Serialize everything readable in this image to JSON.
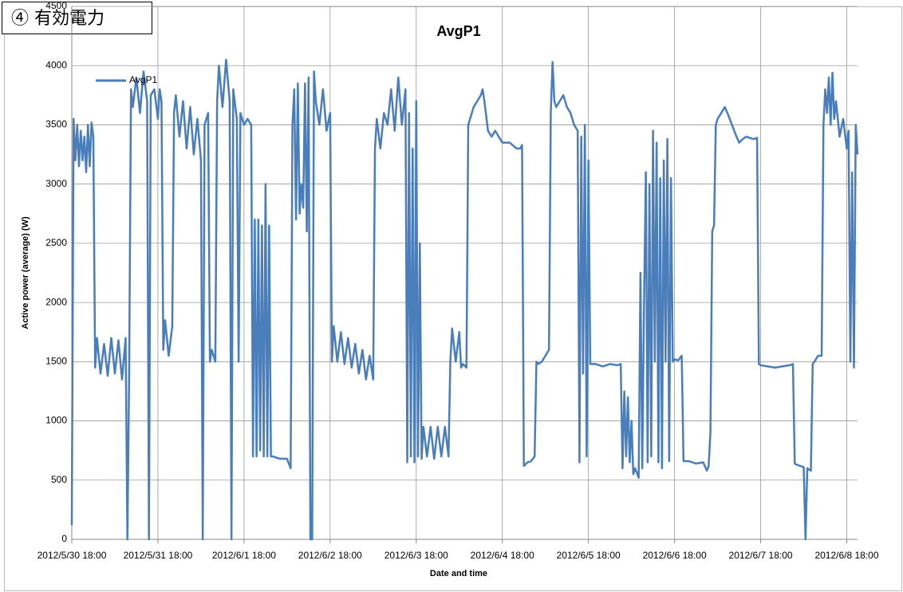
{
  "label": "④ 有効電力",
  "chart_data": {
    "type": "line",
    "title": "AvgP1",
    "x_label": "Date and time",
    "y_label": "Active power (average) (W)",
    "grid": true,
    "legend": "upper left",
    "xlim": [
      "2012/5/30 18:00",
      "2012/6/8 21:00"
    ],
    "xticks": [
      "2012/5/30 18:00",
      "2012/5/31 18:00",
      "2012/6/1 18:00",
      "2012/6/2 18:00",
      "2012/6/3 18:00",
      "2012/6/4 18:00",
      "2012/6/5 18:00",
      "2012/6/6 18:00",
      "2012/6/7 18:00",
      "2012/6/8 18:00"
    ],
    "ylim": [
      0,
      4500
    ],
    "yticks": [
      0,
      500,
      1000,
      1500,
      2000,
      2500,
      3000,
      3500,
      4000,
      4500
    ],
    "x": [
      "2012/5/30 18:00",
      "2012/5/30 18:30",
      "2012/5/30 19:00",
      "2012/5/30 19:30",
      "2012/5/30 20:00",
      "2012/5/30 20:30",
      "2012/5/30 21:00",
      "2012/5/30 21:30",
      "2012/5/30 22:00",
      "2012/5/30 22:30",
      "2012/5/30 23:00",
      "2012/5/30 23:30",
      "2012/5/31 00:00",
      "2012/5/31 00:30",
      "2012/5/31 01:00",
      "2012/5/31 02:00",
      "2012/5/31 03:00",
      "2012/5/31 04:00",
      "2012/5/31 05:00",
      "2012/5/31 06:00",
      "2012/5/31 07:00",
      "2012/5/31 08:00",
      "2012/5/31 09:00",
      "2012/5/31 09:30",
      "2012/5/31 10:00",
      "2012/5/31 10:30",
      "2012/5/31 11:00",
      "2012/5/31 12:00",
      "2012/5/31 13:00",
      "2012/5/31 14:00",
      "2012/5/31 15:00",
      "2012/5/31 15:30",
      "2012/5/31 16:00",
      "2012/5/31 17:00",
      "2012/5/31 18:00",
      "2012/5/31 18:30",
      "2012/5/31 19:00",
      "2012/5/31 19:30",
      "2012/5/31 20:00",
      "2012/5/31 21:00",
      "2012/5/31 22:00",
      "2012/5/31 22:30",
      "2012/5/31 23:00",
      "2012/6/1 00:00",
      "2012/6/1 01:00",
      "2012/6/1 02:00",
      "2012/6/1 03:00",
      "2012/6/1 04:00",
      "2012/6/1 05:00",
      "2012/6/1 06:00",
      "2012/6/1 06:30",
      "2012/6/1 07:00",
      "2012/6/1 08:00",
      "2012/6/1 08:30",
      "2012/6/1 09:00",
      "2012/6/1 10:00",
      "2012/6/1 10:30",
      "2012/6/1 11:00",
      "2012/6/1 12:00",
      "2012/6/1 13:00",
      "2012/6/1 14:00",
      "2012/6/1 14:30",
      "2012/6/1 15:00",
      "2012/6/1 16:00",
      "2012/6/1 16:30",
      "2012/6/1 17:00",
      "2012/6/1 18:00",
      "2012/6/1 19:00",
      "2012/6/1 20:00",
      "2012/6/1 20:30",
      "2012/6/1 21:00",
      "2012/6/1 21:30",
      "2012/6/1 22:00",
      "2012/6/1 22:30",
      "2012/6/1 23:00",
      "2012/6/1 23:30",
      "2012/6/2 00:00",
      "2012/6/2 00:30",
      "2012/6/2 01:00",
      "2012/6/2 01:30",
      "2012/6/2 02:00",
      "2012/6/2 04:00",
      "2012/6/2 06:00",
      "2012/6/2 07:00",
      "2012/6/2 07:30",
      "2012/6/2 08:00",
      "2012/6/2 08:30",
      "2012/6/2 09:00",
      "2012/6/2 09:30",
      "2012/6/2 10:00",
      "2012/6/2 10:30",
      "2012/6/2 11:00",
      "2012/6/2 11:30",
      "2012/6/2 12:00",
      "2012/6/2 12:30",
      "2012/6/2 13:00",
      "2012/6/2 13:30",
      "2012/6/2 14:00",
      "2012/6/2 15:00",
      "2012/6/2 16:00",
      "2012/6/2 17:00",
      "2012/6/2 18:00",
      "2012/6/2 18:30",
      "2012/6/2 19:00",
      "2012/6/2 20:00",
      "2012/6/2 21:00",
      "2012/6/2 22:00",
      "2012/6/2 23:00",
      "2012/6/3 00:00",
      "2012/6/3 01:00",
      "2012/6/3 02:00",
      "2012/6/3 03:00",
      "2012/6/3 04:00",
      "2012/6/3 05:00",
      "2012/6/3 06:00",
      "2012/6/3 06:30",
      "2012/6/3 07:00",
      "2012/6/3 08:00",
      "2012/6/3 09:00",
      "2012/6/3 10:00",
      "2012/6/3 11:00",
      "2012/6/3 12:00",
      "2012/6/3 13:00",
      "2012/6/3 14:00",
      "2012/6/3 15:00",
      "2012/6/3 15:30",
      "2012/6/3 16:00",
      "2012/6/3 16:30",
      "2012/6/3 17:00",
      "2012/6/3 17:30",
      "2012/6/3 18:00",
      "2012/6/3 18:30",
      "2012/6/3 19:00",
      "2012/6/3 19:30",
      "2012/6/3 20:00",
      "2012/6/3 21:00",
      "2012/6/3 22:00",
      "2012/6/3 23:00",
      "2012/6/4 00:00",
      "2012/6/4 01:00",
      "2012/6/4 02:00",
      "2012/6/4 03:00",
      "2012/6/4 03:30",
      "2012/6/4 04:00",
      "2012/6/4 05:00",
      "2012/6/4 06:00",
      "2012/6/4 06:30",
      "2012/6/4 07:00",
      "2012/6/4 08:00",
      "2012/6/4 08:30",
      "2012/6/4 09:00",
      "2012/6/4 10:00",
      "2012/6/4 11:00",
      "2012/6/4 12:00",
      "2012/6/4 12:30",
      "2012/6/4 13:00",
      "2012/6/4 14:00",
      "2012/6/4 15:00",
      "2012/6/4 16:00",
      "2012/6/4 18:00",
      "2012/6/4 20:00",
      "2012/6/4 22:00",
      "2012/6/4 23:00",
      "2012/6/4 23:30",
      "2012/6/5 00:00",
      "2012/6/5 01:00",
      "2012/6/5 02:00",
      "2012/6/5 03:00",
      "2012/6/5 03:30",
      "2012/6/5 04:00",
      "2012/6/5 05:00",
      "2012/6/5 06:00",
      "2012/6/5 07:00",
      "2012/6/5 07:30",
      "2012/6/5 08:00",
      "2012/6/5 08:30",
      "2012/6/5 09:00",
      "2012/6/5 10:00",
      "2012/6/5 11:00",
      "2012/6/5 12:00",
      "2012/6/5 13:00",
      "2012/6/5 14:00",
      "2012/6/5 15:00",
      "2012/6/5 15:30",
      "2012/6/5 16:00",
      "2012/6/5 16:30",
      "2012/6/5 17:00",
      "2012/6/5 17:30",
      "2012/6/5 18:00",
      "2012/6/5 18:30",
      "2012/6/5 20:00",
      "2012/6/5 22:00",
      "2012/6/6 00:00",
      "2012/6/6 02:00",
      "2012/6/6 03:00",
      "2012/6/6 03:30",
      "2012/6/6 04:00",
      "2012/6/6 04:30",
      "2012/6/6 05:00",
      "2012/6/6 05:30",
      "2012/6/6 06:00",
      "2012/6/6 06:30",
      "2012/6/6 07:00",
      "2012/6/6 08:00",
      "2012/6/6 08:30",
      "2012/6/6 09:00",
      "2012/6/6 09:30",
      "2012/6/6 10:00",
      "2012/6/6 10:30",
      "2012/6/6 11:00",
      "2012/6/6 11:30",
      "2012/6/6 12:00",
      "2012/6/6 12:30",
      "2012/6/6 13:00",
      "2012/6/6 13:30",
      "2012/6/6 14:00",
      "2012/6/6 14:30",
      "2012/6/6 15:00",
      "2012/6/6 15:30",
      "2012/6/6 16:00",
      "2012/6/6 16:30",
      "2012/6/6 17:00",
      "2012/6/6 17:30",
      "2012/6/6 18:00",
      "2012/6/6 19:00",
      "2012/6/6 20:00",
      "2012/6/6 20:30",
      "2012/6/6 22:00",
      "2012/6/7 00:00",
      "2012/6/7 02:00",
      "2012/6/7 03:00",
      "2012/6/7 03:30",
      "2012/6/7 04:00",
      "2012/6/7 04:30",
      "2012/6/7 05:00",
      "2012/6/7 05:30",
      "2012/6/7 06:00",
      "2012/6/7 07:00",
      "2012/6/7 08:00",
      "2012/6/7 09:00",
      "2012/6/7 10:00",
      "2012/6/7 11:00",
      "2012/6/7 12:00",
      "2012/6/7 13:00",
      "2012/6/7 14:00",
      "2012/6/7 16:00",
      "2012/6/7 17:00",
      "2012/6/7 17:30",
      "2012/6/7 18:00",
      "2012/6/7 20:00",
      "2012/6/7 22:00",
      "2012/6/8 00:00",
      "2012/6/8 02:00",
      "2012/6/8 03:00",
      "2012/6/8 03:30",
      "2012/6/8 04:00",
      "2012/6/8 05:00",
      "2012/6/8 06:00",
      "2012/6/8 06:30",
      "2012/6/8 07:00",
      "2012/6/8 08:00",
      "2012/6/8 08:30",
      "2012/6/8 09:00",
      "2012/6/8 10:00",
      "2012/6/8 11:00",
      "2012/6/8 11:30",
      "2012/6/8 12:00",
      "2012/6/8 12:30",
      "2012/6/8 13:00",
      "2012/6/8 13:30",
      "2012/6/8 14:00",
      "2012/6/8 14:30",
      "2012/6/8 15:00",
      "2012/6/8 16:00",
      "2012/6/8 17:00",
      "2012/6/8 18:00",
      "2012/6/8 18:30",
      "2012/6/8 19:00",
      "2012/6/8 19:30",
      "2012/6/8 20:00",
      "2012/6/8 20:30",
      "2012/6/8 21:00"
    ],
    "series": [
      {
        "name": "AvgP1",
        "color": "#4a7ebb",
        "values": [
          120,
          3550,
          3200,
          3500,
          3150,
          3450,
          3200,
          3400,
          3100,
          3500,
          3150,
          3520,
          3400,
          1450,
          1700,
          1400,
          1650,
          1380,
          1700,
          1400,
          1680,
          1350,
          1700,
          0,
          1450,
          3800,
          3650,
          3900,
          3600,
          3950,
          3700,
          0,
          3750,
          3800,
          3550,
          3800,
          3700,
          1600,
          1850,
          1550,
          1800,
          3600,
          3750,
          3400,
          3700,
          3300,
          3650,
          3250,
          3550,
          3200,
          0,
          3500,
          3600,
          1500,
          1600,
          1500,
          3700,
          4000,
          3650,
          4050,
          3700,
          0,
          3800,
          3550,
          1500,
          3600,
          3500,
          3550,
          3500,
          700,
          2700,
          700,
          2700,
          750,
          2650,
          700,
          3000,
          700,
          2650,
          700,
          700,
          680,
          680,
          600,
          3500,
          3800,
          2700,
          3850,
          2750,
          3000,
          2800,
          3850,
          2600,
          3900,
          0,
          0,
          3950,
          3700,
          3500,
          3800,
          3450,
          3600,
          1500,
          1800,
          1500,
          1750,
          1480,
          1700,
          1450,
          1650,
          1400,
          1600,
          1350,
          1550,
          1350,
          3300,
          3550,
          3300,
          3600,
          3500,
          3800,
          3450,
          3900,
          3500,
          3800,
          650,
          3600,
          700,
          3300,
          650,
          3700,
          700,
          2500,
          680,
          950,
          700,
          950,
          680,
          950,
          700,
          950,
          700,
          1500,
          1780,
          1500,
          1750,
          1450,
          1480,
          1450,
          3500,
          3550,
          3650,
          3700,
          3750,
          3800,
          3700,
          3450,
          3400,
          3450,
          3350,
          3350,
          3300,
          3300,
          3330,
          620,
          650,
          660,
          700,
          1500,
          1480,
          1500,
          1550,
          1600,
          3600,
          4030,
          3700,
          3650,
          3700,
          3750,
          3650,
          3600,
          3500,
          3450,
          650,
          3400,
          1400,
          3500,
          700,
          3200,
          1480,
          1480,
          1460,
          1480,
          1470,
          1480,
          600,
          1250,
          700,
          1200,
          650,
          1000,
          550,
          600,
          520,
          2250,
          600,
          2000,
          3100,
          650,
          3000,
          700,
          3450,
          1500,
          3350,
          650,
          3050,
          600,
          3200,
          1500,
          3380,
          660,
          3050,
          1500,
          1520,
          1510,
          1550,
          660,
          660,
          640,
          650,
          580,
          620,
          900,
          2600,
          2650,
          3500,
          3550,
          3600,
          3650,
          3580,
          3500,
          3420,
          3350,
          3380,
          3400,
          3380,
          3390,
          1480,
          1470,
          1460,
          1450,
          1460,
          1470,
          1480,
          640,
          630,
          620,
          610,
          0,
          600,
          580,
          1480,
          1500,
          1550,
          1550,
          3500,
          3800,
          3600,
          3900,
          3500,
          3940,
          3550,
          3700,
          3400,
          3550,
          3300,
          3450,
          1500,
          3100,
          1450,
          3500,
          3250
        ]
      }
    ]
  }
}
